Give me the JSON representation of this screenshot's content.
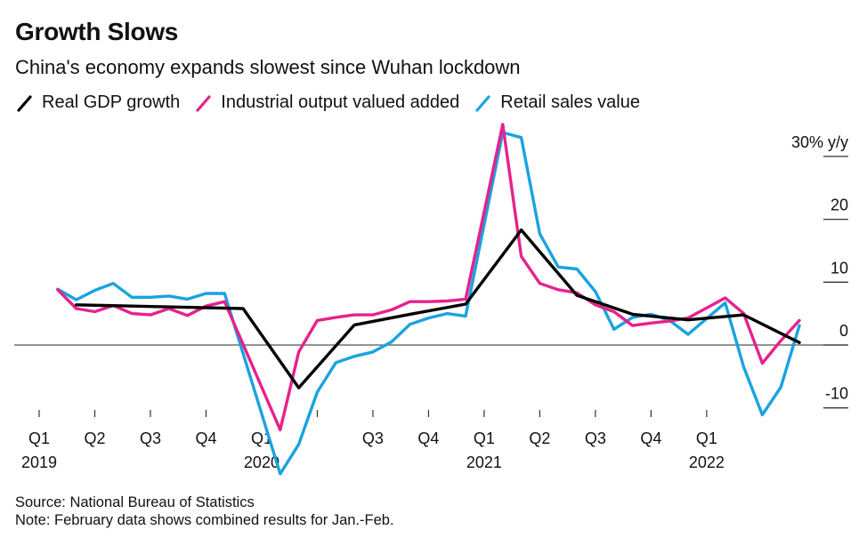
{
  "title": "Growth Slows",
  "subtitle": "China's economy expands slowest since Wuhan lockdown",
  "footer": {
    "source": "Source: National Bureau of Statistics",
    "note": "Note: February data shows combined results for Jan.-Feb."
  },
  "chart_data": {
    "type": "line",
    "title": "Growth Slows",
    "subtitle": "China's economy expands slowest since Wuhan lockdown",
    "xlabel": "",
    "ylabel": "% y/y",
    "ylim": [
      -13,
      33
    ],
    "yticks": [
      30,
      20,
      10,
      0,
      -10
    ],
    "ytick_labels": [
      "30% y/y",
      "20",
      "10",
      "0",
      "-10"
    ],
    "grid": false,
    "zero_line": true,
    "legend_position": "top-left",
    "x_ticks": [
      {
        "month": "2019-01",
        "label": "Q1",
        "year": "2019"
      },
      {
        "month": "2019-04",
        "label": "Q2",
        "year": ""
      },
      {
        "month": "2019-07",
        "label": "Q3",
        "year": ""
      },
      {
        "month": "2019-10",
        "label": "Q4",
        "year": ""
      },
      {
        "month": "2020-01",
        "label": "Q1",
        "year": "2020"
      },
      {
        "month": "2020-04",
        "label": "",
        "year": ""
      },
      {
        "month": "2020-07",
        "label": "Q3",
        "year": ""
      },
      {
        "month": "2020-10",
        "label": "Q4",
        "year": ""
      },
      {
        "month": "2021-01",
        "label": "Q1",
        "year": "2021"
      },
      {
        "month": "2021-04",
        "label": "Q2",
        "year": ""
      },
      {
        "month": "2021-07",
        "label": "Q3",
        "year": ""
      },
      {
        "month": "2021-10",
        "label": "Q4",
        "year": ""
      },
      {
        "month": "2022-01",
        "label": "Q1",
        "year": "2022"
      }
    ],
    "series": [
      {
        "name": "Real GDP growth",
        "color": "#000000",
        "points": [
          [
            "2019-03",
            6.4
          ],
          [
            "2019-06",
            6.2
          ],
          [
            "2019-09",
            6.0
          ],
          [
            "2019-12",
            5.8
          ],
          [
            "2020-03",
            -6.8
          ],
          [
            "2020-06",
            3.2
          ],
          [
            "2020-09",
            4.9
          ],
          [
            "2020-12",
            6.5
          ],
          [
            "2021-03",
            18.3
          ],
          [
            "2021-06",
            7.9
          ],
          [
            "2021-09",
            4.9
          ],
          [
            "2021-12",
            4.0
          ],
          [
            "2022-03",
            4.8
          ],
          [
            "2022-06",
            0.4
          ]
        ]
      },
      {
        "name": "Industrial output valued added",
        "color": "#e6228c",
        "points": [
          [
            "2019-02",
            8.8
          ],
          [
            "2019-03",
            5.8
          ],
          [
            "2019-04",
            5.3
          ],
          [
            "2019-05",
            6.3
          ],
          [
            "2019-06",
            5.0
          ],
          [
            "2019-07",
            4.8
          ],
          [
            "2019-08",
            5.8
          ],
          [
            "2019-09",
            4.7
          ],
          [
            "2019-10",
            6.2
          ],
          [
            "2019-11",
            6.9
          ],
          [
            "2020-02",
            -13.5
          ],
          [
            "2020-03",
            -1.1
          ],
          [
            "2020-04",
            3.9
          ],
          [
            "2020-05",
            4.4
          ],
          [
            "2020-06",
            4.8
          ],
          [
            "2020-07",
            4.8
          ],
          [
            "2020-08",
            5.6
          ],
          [
            "2020-09",
            6.9
          ],
          [
            "2020-10",
            6.9
          ],
          [
            "2020-11",
            7.0
          ],
          [
            "2020-12",
            7.3
          ],
          [
            "2021-02",
            35.1
          ],
          [
            "2021-03",
            14.1
          ],
          [
            "2021-04",
            9.8
          ],
          [
            "2021-05",
            8.8
          ],
          [
            "2021-06",
            8.3
          ],
          [
            "2021-07",
            6.4
          ],
          [
            "2021-08",
            5.3
          ],
          [
            "2021-09",
            3.1
          ],
          [
            "2021-10",
            3.5
          ],
          [
            "2021-11",
            3.8
          ],
          [
            "2021-12",
            4.3
          ],
          [
            "2022-02",
            7.5
          ],
          [
            "2022-03",
            5.0
          ],
          [
            "2022-04",
            -2.9
          ],
          [
            "2022-05",
            0.7
          ],
          [
            "2022-06",
            3.9
          ]
        ]
      },
      {
        "name": "Retail sales value",
        "color": "#1aa3e0",
        "points": [
          [
            "2019-02",
            8.9
          ],
          [
            "2019-03",
            7.2
          ],
          [
            "2019-04",
            8.7
          ],
          [
            "2019-05",
            9.8
          ],
          [
            "2019-06",
            7.6
          ],
          [
            "2019-07",
            7.6
          ],
          [
            "2019-08",
            7.8
          ],
          [
            "2019-09",
            7.3
          ],
          [
            "2019-10",
            8.2
          ],
          [
            "2019-11",
            8.2
          ],
          [
            "2020-02",
            -20.5
          ],
          [
            "2020-03",
            -15.8
          ],
          [
            "2020-04",
            -7.5
          ],
          [
            "2020-05",
            -2.8
          ],
          [
            "2020-06",
            -1.8
          ],
          [
            "2020-07",
            -1.1
          ],
          [
            "2020-08",
            0.5
          ],
          [
            "2020-09",
            3.3
          ],
          [
            "2020-10",
            4.3
          ],
          [
            "2020-11",
            5.0
          ],
          [
            "2020-12",
            4.6
          ],
          [
            "2021-02",
            33.8
          ],
          [
            "2021-03",
            33.0
          ],
          [
            "2021-04",
            17.7
          ],
          [
            "2021-05",
            12.4
          ],
          [
            "2021-06",
            12.1
          ],
          [
            "2021-07",
            8.5
          ],
          [
            "2021-08",
            2.5
          ],
          [
            "2021-09",
            4.4
          ],
          [
            "2021-10",
            4.9
          ],
          [
            "2021-11",
            3.9
          ],
          [
            "2021-12",
            1.7
          ],
          [
            "2022-02",
            6.7
          ],
          [
            "2022-03",
            -3.5
          ],
          [
            "2022-04",
            -11.1
          ],
          [
            "2022-05",
            -6.7
          ],
          [
            "2022-06",
            3.1
          ]
        ]
      }
    ]
  }
}
